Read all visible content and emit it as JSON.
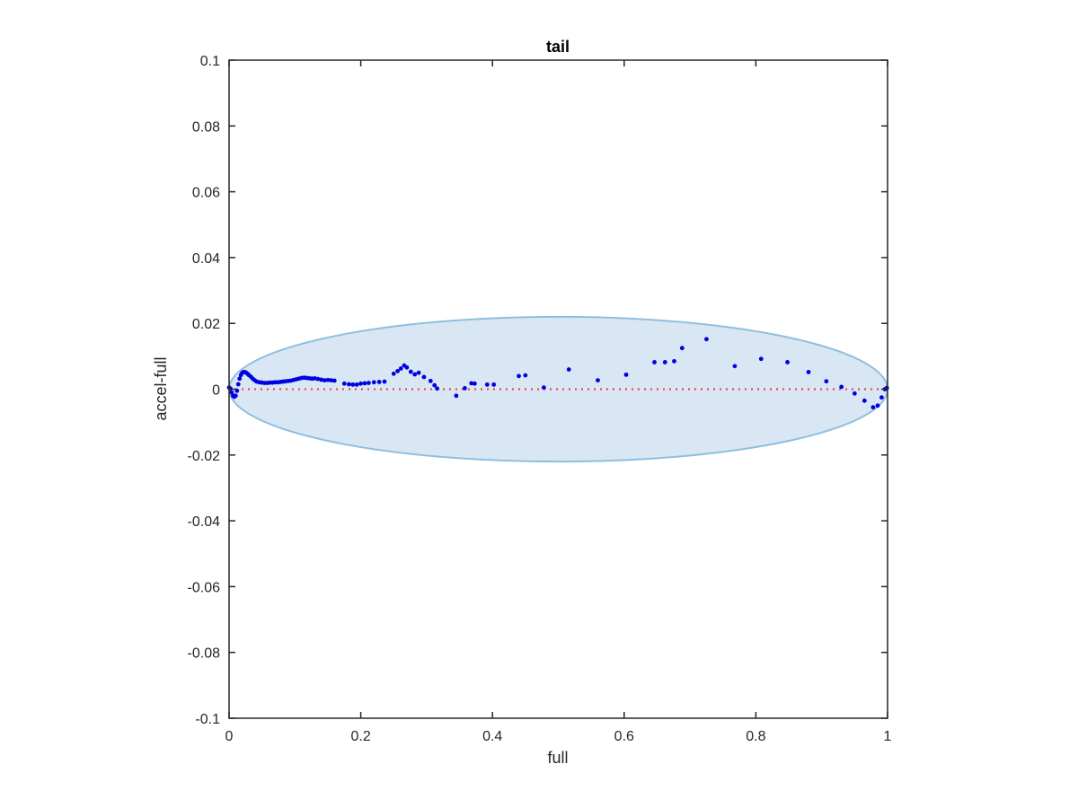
{
  "chart_data": {
    "type": "scatter",
    "title": "tail",
    "xlabel": "full",
    "ylabel": "accel-full",
    "xlim": [
      0,
      1
    ],
    "ylim": [
      -0.1,
      0.1
    ],
    "xticks": [
      0,
      0.2,
      0.4,
      0.6,
      0.8,
      1
    ],
    "xtick_labels": [
      "0",
      "0.2",
      "0.4",
      "0.6",
      "0.8",
      "1"
    ],
    "yticks": [
      -0.1,
      -0.08,
      -0.06,
      -0.04,
      -0.02,
      0,
      0.02,
      0.04,
      0.06,
      0.08,
      0.1
    ],
    "ytick_labels": [
      "-0.1",
      "-0.08",
      "-0.06",
      "-0.04",
      "-0.02",
      "0",
      "0.02",
      "0.04",
      "0.06",
      "0.08",
      "0.1"
    ],
    "grid": false,
    "ellipse": {
      "center_x": 0.5,
      "center_y": 0,
      "radius_x": 0.5,
      "radius_y": 0.022,
      "fill": "#d8e7f3",
      "stroke": "#8fbfe0"
    },
    "reference_line": {
      "y": 0,
      "x_range": [
        0,
        1
      ],
      "color": "#e63b3b",
      "style": "dotted"
    },
    "series": [
      {
        "marker_color": "#0000e0",
        "x": [
          0.0,
          0.002,
          0.004,
          0.006,
          0.008,
          0.01,
          0.012,
          0.014,
          0.016,
          0.018,
          0.02,
          0.022,
          0.024,
          0.026,
          0.028,
          0.03,
          0.033,
          0.036,
          0.039,
          0.042,
          0.046,
          0.05,
          0.054,
          0.058,
          0.062,
          0.066,
          0.07,
          0.074,
          0.078,
          0.082,
          0.086,
          0.09,
          0.094,
          0.098,
          0.102,
          0.106,
          0.11,
          0.114,
          0.118,
          0.122,
          0.126,
          0.13,
          0.135,
          0.14,
          0.145,
          0.15,
          0.155,
          0.16,
          0.175,
          0.182,
          0.188,
          0.194,
          0.2,
          0.206,
          0.212,
          0.22,
          0.228,
          0.236,
          0.25,
          0.256,
          0.261,
          0.266,
          0.27,
          0.276,
          0.282,
          0.288,
          0.296,
          0.306,
          0.312,
          0.316,
          0.345,
          0.358,
          0.368,
          0.373,
          0.392,
          0.402,
          0.44,
          0.45,
          0.478,
          0.516,
          0.56,
          0.603,
          0.646,
          0.662,
          0.676,
          0.688,
          0.725,
          0.768,
          0.808,
          0.848,
          0.88,
          0.907,
          0.93,
          0.95,
          0.965,
          0.978,
          0.985,
          0.991,
          0.996,
          0.999
        ],
        "y": [
          0.0005,
          0.0002,
          -0.001,
          -0.002,
          -0.0023,
          -0.002,
          -0.0005,
          0.0015,
          0.0032,
          0.0043,
          0.005,
          0.0052,
          0.0052,
          0.005,
          0.0047,
          0.0043,
          0.0038,
          0.0032,
          0.0027,
          0.0023,
          0.0021,
          0.002,
          0.0019,
          0.0019,
          0.002,
          0.002,
          0.0021,
          0.0021,
          0.0022,
          0.0023,
          0.0024,
          0.0025,
          0.0026,
          0.0028,
          0.003,
          0.0032,
          0.0034,
          0.0035,
          0.0034,
          0.0033,
          0.0032,
          0.0033,
          0.0031,
          0.0029,
          0.0027,
          0.0028,
          0.0027,
          0.0026,
          0.0017,
          0.0015,
          0.0014,
          0.0014,
          0.0017,
          0.0018,
          0.0019,
          0.0021,
          0.0022,
          0.0023,
          0.0047,
          0.0055,
          0.0063,
          0.0072,
          0.0066,
          0.0053,
          0.0045,
          0.005,
          0.0037,
          0.0025,
          0.0012,
          0.0002,
          -0.002,
          0.0003,
          0.0018,
          0.0017,
          0.0014,
          0.0014,
          0.004,
          0.0042,
          0.0005,
          0.006,
          0.0027,
          0.0044,
          0.0082,
          0.0082,
          0.0085,
          0.0125,
          0.0152,
          0.007,
          0.0092,
          0.0082,
          0.0052,
          0.0024,
          0.0007,
          -0.0013,
          -0.0035,
          -0.0055,
          -0.005,
          -0.0025,
          0.0,
          0.0004
        ]
      }
    ]
  }
}
